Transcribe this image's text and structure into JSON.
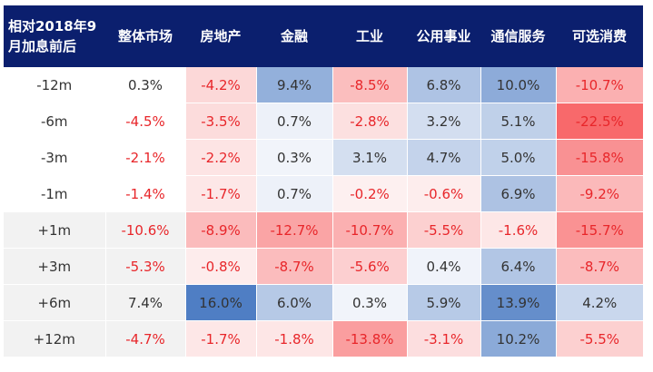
{
  "colors": {
    "header_bg": "#0b1f6e",
    "negative_text": "#e8262a",
    "positive_text": "#333333",
    "pos_max": "#4f7ec4",
    "neg_max": "#f8696b"
  },
  "chart_data": {
    "type": "table",
    "corner_label": "相对2018年9月加息前后",
    "columns": [
      "整体市场",
      "房地产",
      "金融",
      "工业",
      "公用事业",
      "通信服务",
      "可选消费"
    ],
    "rows": [
      {
        "label": "-12m",
        "values": [
          0.3,
          -4.2,
          9.4,
          -8.5,
          6.8,
          10.0,
          -10.7
        ]
      },
      {
        "label": "-6m",
        "values": [
          -4.5,
          -3.5,
          0.7,
          -2.8,
          3.2,
          5.1,
          -22.5
        ]
      },
      {
        "label": "-3m",
        "values": [
          -2.1,
          -2.2,
          0.3,
          3.1,
          4.7,
          5.0,
          -15.8
        ]
      },
      {
        "label": "-1m",
        "values": [
          -1.4,
          -1.7,
          0.7,
          -0.2,
          -0.6,
          6.9,
          -9.2
        ]
      },
      {
        "label": "+1m",
        "values": [
          -10.6,
          -8.9,
          -12.7,
          -10.7,
          -5.5,
          -1.6,
          -15.7
        ]
      },
      {
        "label": "+3m",
        "values": [
          -5.3,
          -0.8,
          -8.7,
          -5.6,
          0.4,
          6.4,
          -8.7
        ]
      },
      {
        "label": "+6m",
        "values": [
          7.4,
          16.0,
          6.0,
          0.3,
          5.9,
          13.9,
          4.2
        ]
      },
      {
        "label": "+12m",
        "values": [
          -4.7,
          -1.7,
          -1.8,
          -13.8,
          -3.1,
          10.2,
          -5.5
        ]
      }
    ],
    "value_unit": "%",
    "first_column_uncolored": true
  }
}
